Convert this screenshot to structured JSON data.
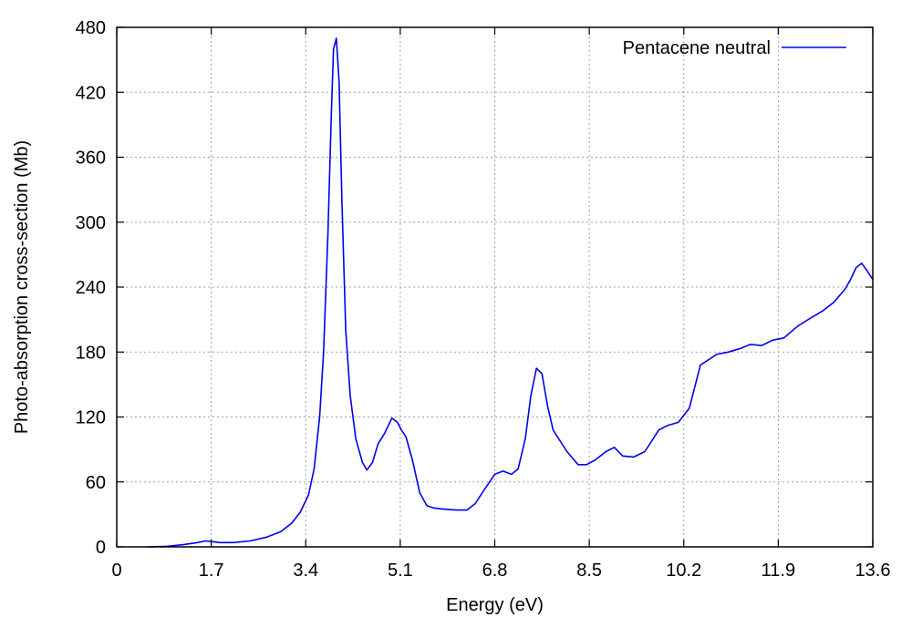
{
  "chart_data": {
    "type": "line",
    "title": "",
    "xlabel": "Energy (eV)",
    "ylabel": "Photo-absorption cross-section (Mb)",
    "xlim": [
      0,
      13.6
    ],
    "ylim": [
      0,
      480
    ],
    "xticks": [
      0,
      1.7,
      3.4,
      5.1,
      6.8,
      8.5,
      10.2,
      11.9,
      13.6
    ],
    "xtick_labels": [
      "0",
      "1.7",
      "3.4",
      "5.1",
      "6.8",
      "8.5",
      "10.2",
      "11.9",
      "13.6"
    ],
    "yticks": [
      0,
      60,
      120,
      180,
      240,
      300,
      360,
      420,
      480
    ],
    "ytick_labels": [
      "0",
      "60",
      "120",
      "180",
      "240",
      "300",
      "360",
      "420",
      "480"
    ],
    "grid": true,
    "legend_position": "top-right",
    "series": [
      {
        "name": "Pentacene neutral",
        "color": "#0000ee",
        "x": [
          0.55,
          0.9,
          1.2,
          1.45,
          1.6,
          1.7,
          1.85,
          2.1,
          2.4,
          2.7,
          2.95,
          3.15,
          3.3,
          3.45,
          3.55,
          3.65,
          3.72,
          3.8,
          3.86,
          3.9,
          3.95,
          4.0,
          4.05,
          4.12,
          4.2,
          4.3,
          4.42,
          4.5,
          4.6,
          4.7,
          4.82,
          4.95,
          5.05,
          5.12,
          5.2,
          5.32,
          5.45,
          5.58,
          5.7,
          5.85,
          6.1,
          6.3,
          6.45,
          6.6,
          6.8,
          6.95,
          7.1,
          7.22,
          7.35,
          7.45,
          7.55,
          7.65,
          7.75,
          7.85,
          7.95,
          8.1,
          8.3,
          8.45,
          8.6,
          8.8,
          8.95,
          9.1,
          9.3,
          9.5,
          9.75,
          9.9,
          10.1,
          10.3,
          10.5,
          10.8,
          11.0,
          11.2,
          11.4,
          11.6,
          11.8,
          12.0,
          12.25,
          12.5,
          12.7,
          12.9,
          13.1,
          13.2,
          13.3,
          13.4,
          13.5,
          13.6
        ],
        "y": [
          0,
          0.5,
          2,
          4,
          5.5,
          5,
          4,
          4,
          5.5,
          9,
          14,
          22,
          32,
          48,
          72,
          120,
          180,
          290,
          400,
          460,
          470,
          430,
          320,
          200,
          140,
          100,
          78,
          71,
          78,
          95,
          105,
          119,
          115,
          108,
          102,
          80,
          50,
          38,
          36,
          35,
          34,
          34,
          40,
          52,
          67,
          70,
          67,
          72,
          100,
          140,
          165,
          160,
          130,
          108,
          100,
          88,
          76,
          76,
          80,
          88,
          92,
          84,
          83,
          88,
          108,
          112,
          115,
          128,
          168,
          178,
          180,
          183,
          187,
          186,
          191,
          193,
          204,
          212,
          218,
          226,
          238,
          247,
          258,
          262,
          255,
          247
        ]
      }
    ]
  }
}
